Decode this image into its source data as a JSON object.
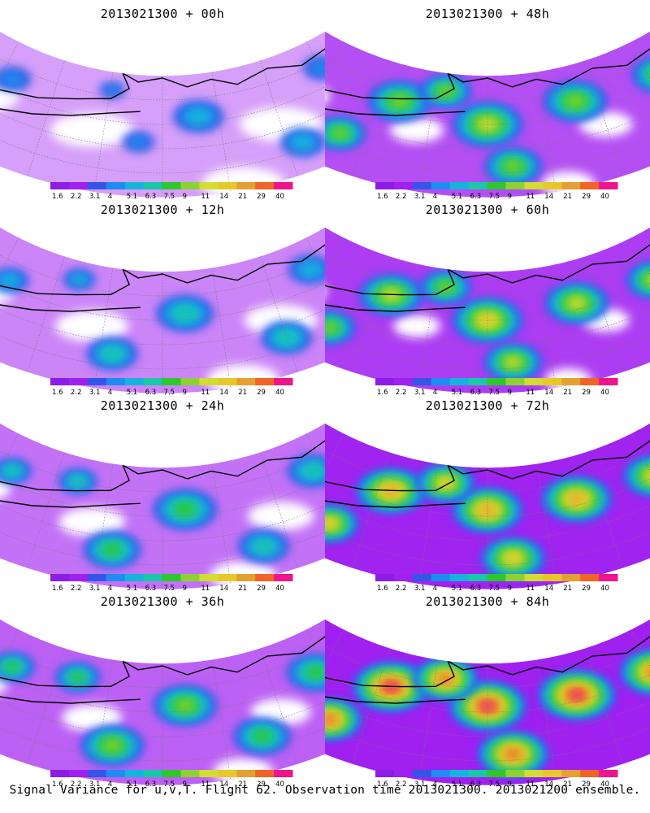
{
  "caption": "Signal Variance for u,v,T. Flight 62. Observation time 2013021300. 2013021200 ensemble.",
  "colorbar": {
    "labels": [
      "1.6",
      "2.2",
      "3.1",
      "4",
      "5.1",
      "6.3",
      "7.5",
      "9",
      "11",
      "14",
      "21",
      "29",
      "40"
    ],
    "colors": [
      "#8c1ce6",
      "#a020f0",
      "#3455e6",
      "#1e8cf0",
      "#16b4dc",
      "#18c8a8",
      "#2cc82c",
      "#8cd232",
      "#d2dc32",
      "#e6c828",
      "#e6a032",
      "#f06428",
      "#f0148c"
    ]
  },
  "panels": [
    {
      "title": "2013021300 + 00h",
      "intensity": 0.1
    },
    {
      "title": "2013021300 + 48h",
      "intensity": 0.55
    },
    {
      "title": "2013021300 + 12h",
      "intensity": 0.25
    },
    {
      "title": "2013021300 + 60h",
      "intensity": 0.65
    },
    {
      "title": "2013021300 + 24h",
      "intensity": 0.35
    },
    {
      "title": "2013021300 + 72h",
      "intensity": 0.8
    },
    {
      "title": "2013021300 + 36h",
      "intensity": 0.45
    },
    {
      "title": "2013021300 + 84h",
      "intensity": 0.95
    }
  ]
}
